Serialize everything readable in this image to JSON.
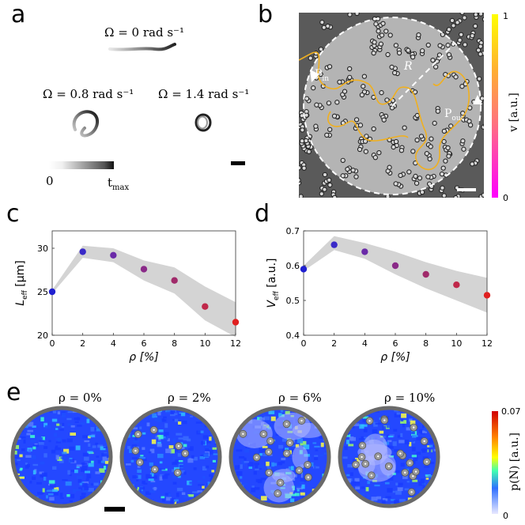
{
  "panel_a": {
    "label": "a",
    "omega_top": "Ω = 0 rad s⁻¹",
    "omega_left": "Ω = 0.8 rad s⁻¹",
    "omega_right": "Ω = 1.4 rad s⁻¹",
    "time_start": "0",
    "time_end": "t",
    "time_end_sub": "max"
  },
  "panel_b": {
    "label": "b",
    "r_label": "R",
    "p_in": "P",
    "p_in_sub": "in",
    "p_out": "P",
    "p_out_sub": "out",
    "colorbar_label": "v  [a.u.]",
    "colorbar_max": "1",
    "colorbar_min": "0"
  },
  "panel_e": {
    "label": "e",
    "titles": [
      "ρ = 0%",
      "ρ = 2%",
      "ρ = 6%",
      "ρ = 10%"
    ],
    "colorbar_label": "p(N)  [a.u.]",
    "colorbar_max": "0.07",
    "colorbar_min": "0"
  },
  "chart_data": [
    {
      "panel": "c",
      "type": "scatter",
      "x": [
        0,
        2,
        4,
        6,
        8,
        10,
        12
      ],
      "y": [
        25.0,
        29.6,
        29.2,
        27.6,
        26.3,
        23.3,
        21.5
      ],
      "band_upper": [
        25.2,
        30.3,
        30.0,
        28.6,
        27.8,
        25.6,
        23.8
      ],
      "band_lower": [
        24.8,
        28.9,
        28.4,
        26.3,
        24.8,
        21.7,
        19.8
      ],
      "xlabel": "ρ [%]",
      "ylabel": "L",
      "ylabel_sub": "eff",
      "ylabel_unit": "[μm]",
      "xlim": [
        0,
        12
      ],
      "ylim": [
        20,
        32
      ],
      "xticks": [
        "0",
        "2",
        "4",
        "6",
        "8",
        "10",
        "12"
      ],
      "yticks": [
        "20",
        "25",
        "30"
      ]
    },
    {
      "panel": "d",
      "type": "scatter",
      "x": [
        0,
        2,
        4,
        6,
        8,
        10,
        12
      ],
      "y": [
        0.59,
        0.66,
        0.64,
        0.6,
        0.575,
        0.545,
        0.515
      ],
      "band_upper": [
        0.6,
        0.685,
        0.665,
        0.64,
        0.61,
        0.585,
        0.565
      ],
      "band_lower": [
        0.585,
        0.645,
        0.62,
        0.575,
        0.535,
        0.5,
        0.465
      ],
      "xlabel": "ρ [%]",
      "ylabel": "V",
      "ylabel_sub": "eff",
      "ylabel_unit": "[a.u.]",
      "xlim": [
        0,
        12
      ],
      "ylim": [
        0.4,
        0.7
      ],
      "xticks": [
        "0",
        "2",
        "4",
        "6",
        "8",
        "10",
        "12"
      ],
      "yticks": [
        "0.4",
        "0.5",
        "0.6",
        "0.7"
      ]
    }
  ],
  "colors": {
    "point_gradient": [
      "#2020d0",
      "#3a2ac8",
      "#6a2aa8",
      "#8a2a88",
      "#a02a6a",
      "#c0284a",
      "#e02020"
    ],
    "band": "#d4d4d4",
    "trail_color": "#f0b020",
    "colorbar_b_top": "#ffff00",
    "colorbar_b_bottom": "#ff00ff"
  }
}
